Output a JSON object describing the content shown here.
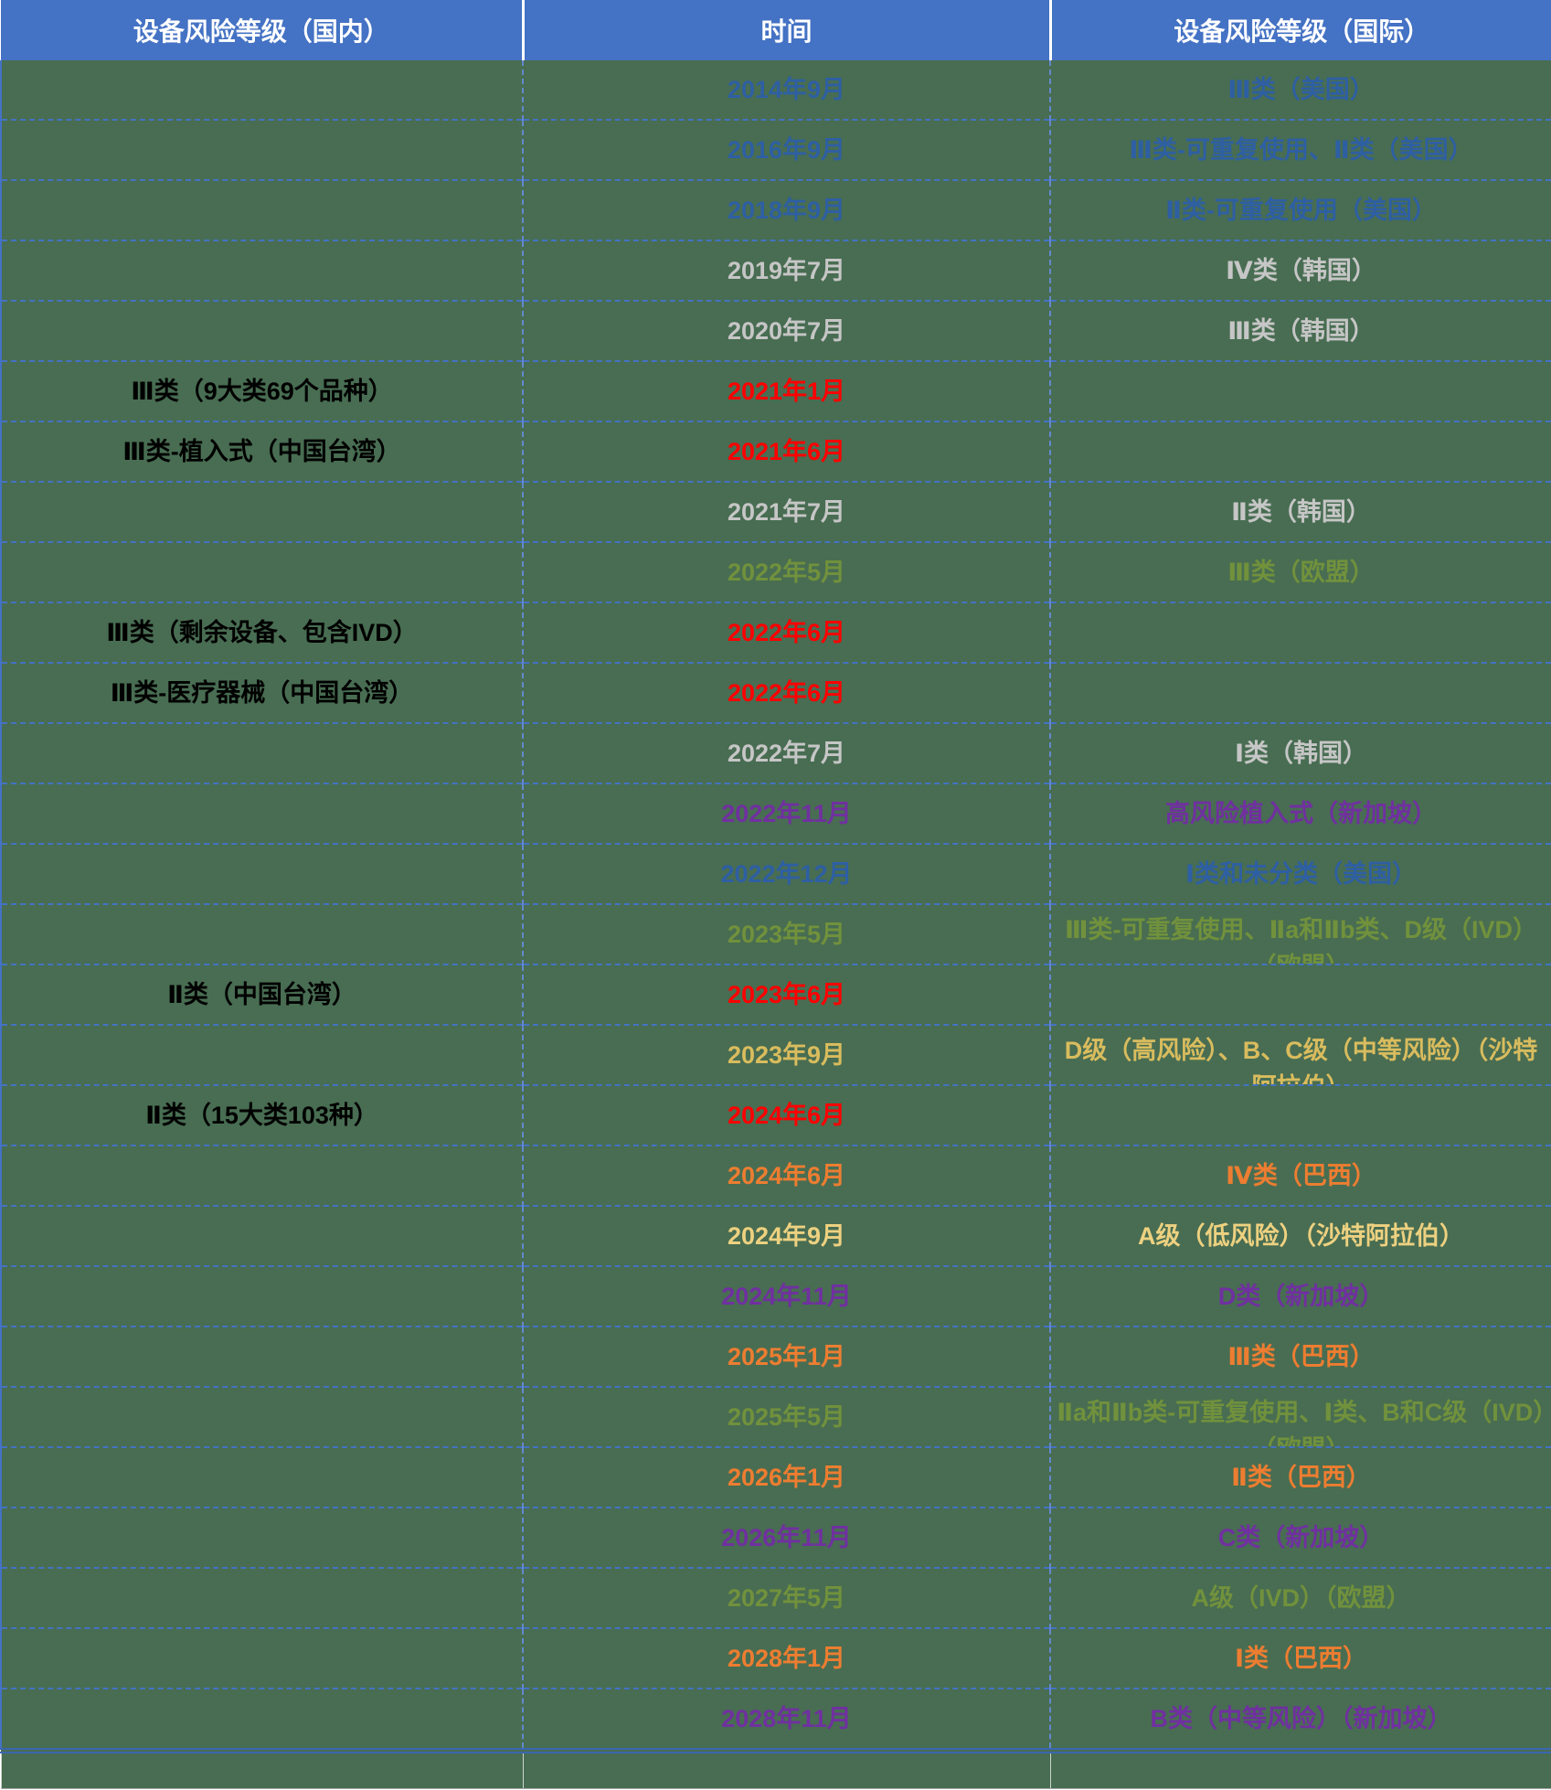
{
  "colors": {
    "header_bg": "#4472C4",
    "header_text": "#FFFFFF",
    "body_bg": "#486D52",
    "us": "#2E5FA3",
    "kr": "#C6C6C6",
    "cn_year": "#FF0000",
    "cn_text": "#000000",
    "eu": "#71913C",
    "sg": "#7030A0",
    "sa": "#D9BC5E",
    "sa_light": "#EDD180",
    "br": "#ED7D31",
    "none": "#486D52"
  },
  "table": {
    "columns": [
      {
        "label": "设备风险等级（国内）"
      },
      {
        "label": "时间"
      },
      {
        "label": "设备风险等级（国际）"
      }
    ],
    "rows": [
      {
        "domestic": "",
        "time": "2014年9月",
        "intl": "Ⅲ类（美国）",
        "time_color": "us",
        "intl_color": "us",
        "domestic_color": "cn_text",
        "wrap": false
      },
      {
        "domestic": "",
        "time": "2016年9月",
        "intl": "Ⅲ类-可重复使用、Ⅱ类（美国）",
        "time_color": "us",
        "intl_color": "us",
        "domestic_color": "cn_text",
        "wrap": false
      },
      {
        "domestic": "",
        "time": "2018年9月",
        "intl": "Ⅱ类-可重复使用（美国）",
        "time_color": "us",
        "intl_color": "us",
        "domestic_color": "cn_text",
        "wrap": false
      },
      {
        "domestic": "",
        "time": "2019年7月",
        "intl": "Ⅳ类（韩国）",
        "time_color": "kr",
        "intl_color": "kr",
        "domestic_color": "cn_text",
        "wrap": false
      },
      {
        "domestic": "",
        "time": "2020年7月",
        "intl": "Ⅲ类（韩国）",
        "time_color": "kr",
        "intl_color": "kr",
        "domestic_color": "cn_text",
        "wrap": false
      },
      {
        "domestic": "Ⅲ类（9大类69个品种）",
        "time": "2021年1月",
        "intl": "",
        "time_color": "cn_year",
        "intl_color": "none",
        "domestic_color": "cn_text",
        "wrap": false
      },
      {
        "domestic": "Ⅲ类-植入式（中国台湾）",
        "time": "2021年6月",
        "intl": "",
        "time_color": "cn_year",
        "intl_color": "none",
        "domestic_color": "cn_text",
        "wrap": false
      },
      {
        "domestic": "",
        "time": "2021年7月",
        "intl": "Ⅱ类（韩国）",
        "time_color": "kr",
        "intl_color": "kr",
        "domestic_color": "cn_text",
        "wrap": false
      },
      {
        "domestic": "",
        "time": "2022年5月",
        "intl": "Ⅲ类（欧盟）",
        "time_color": "eu",
        "intl_color": "eu",
        "domestic_color": "cn_text",
        "wrap": false
      },
      {
        "domestic": "Ⅲ类（剩余设备、包含IVD）",
        "time": "2022年6月",
        "intl": "",
        "time_color": "cn_year",
        "intl_color": "none",
        "domestic_color": "cn_text",
        "wrap": false
      },
      {
        "domestic": "Ⅲ类-医疗器械（中国台湾）",
        "time": "2022年6月",
        "intl": "",
        "time_color": "cn_year",
        "intl_color": "none",
        "domestic_color": "cn_text",
        "wrap": false
      },
      {
        "domestic": "",
        "time": "2022年7月",
        "intl": "Ⅰ类（韩国）",
        "time_color": "kr",
        "intl_color": "kr",
        "domestic_color": "cn_text",
        "wrap": false
      },
      {
        "domestic": "",
        "time": "2022年11月",
        "intl": "高风险植入式（新加坡）",
        "time_color": "sg",
        "intl_color": "sg",
        "domestic_color": "cn_text",
        "wrap": false
      },
      {
        "domestic": "",
        "time": "2022年12月",
        "intl": "Ⅰ类和未分类（美国）",
        "time_color": "us",
        "intl_color": "us",
        "domestic_color": "cn_text",
        "wrap": false
      },
      {
        "domestic": "",
        "time": "2023年5月",
        "intl": "Ⅲ类-可重复使用、Ⅱa和Ⅱb类、D级（IVD）（欧盟）",
        "time_color": "eu",
        "intl_color": "eu",
        "domestic_color": "cn_text",
        "wrap": true
      },
      {
        "domestic": "Ⅱ类（中国台湾）",
        "time": "2023年6月",
        "intl": "",
        "time_color": "cn_year",
        "intl_color": "none",
        "domestic_color": "cn_text",
        "wrap": false
      },
      {
        "domestic": "",
        "time": "2023年9月",
        "intl": "D级（高风险）、B、C级（中等风险）（沙特阿拉伯）",
        "time_color": "sa",
        "intl_color": "sa",
        "domestic_color": "cn_text",
        "wrap": true
      },
      {
        "domestic": "Ⅱ类（15大类103种）",
        "time": "2024年6月",
        "intl": "",
        "time_color": "cn_year",
        "intl_color": "none",
        "domestic_color": "cn_text",
        "wrap": false
      },
      {
        "domestic": "",
        "time": "2024年6月",
        "intl": "Ⅳ类（巴西）",
        "time_color": "br",
        "intl_color": "br",
        "domestic_color": "cn_text",
        "wrap": false
      },
      {
        "domestic": "",
        "time": "2024年9月",
        "intl": "A级（低风险）（沙特阿拉伯）",
        "time_color": "sa_light",
        "intl_color": "sa_light",
        "domestic_color": "cn_text",
        "wrap": false
      },
      {
        "domestic": "",
        "time": "2024年11月",
        "intl": "D类（新加坡）",
        "time_color": "sg",
        "intl_color": "sg",
        "domestic_color": "cn_text",
        "wrap": false
      },
      {
        "domestic": "",
        "time": "2025年1月",
        "intl": "Ⅲ类（巴西）",
        "time_color": "br",
        "intl_color": "br",
        "domestic_color": "cn_text",
        "wrap": false
      },
      {
        "domestic": "",
        "time": "2025年5月",
        "intl": "Ⅱa和Ⅱb类-可重复使用、Ⅰ类、B和C级（IVD）（欧盟）",
        "time_color": "eu",
        "intl_color": "eu",
        "domestic_color": "cn_text",
        "wrap": true
      },
      {
        "domestic": "",
        "time": "2026年1月",
        "intl": "Ⅱ类（巴西）",
        "time_color": "br",
        "intl_color": "br",
        "domestic_color": "cn_text",
        "wrap": false
      },
      {
        "domestic": "",
        "time": "2026年11月",
        "intl": "C类（新加坡）",
        "time_color": "sg",
        "intl_color": "sg",
        "domestic_color": "cn_text",
        "wrap": false
      },
      {
        "domestic": "",
        "time": "2027年5月",
        "intl": "A级（IVD）（欧盟）",
        "time_color": "eu",
        "intl_color": "eu",
        "domestic_color": "cn_text",
        "wrap": false
      },
      {
        "domestic": "",
        "time": "2028年1月",
        "intl": "Ⅰ类（巴西）",
        "time_color": "br",
        "intl_color": "br",
        "domestic_color": "cn_text",
        "wrap": false
      },
      {
        "domestic": "",
        "time": "2028年11月",
        "intl": "B类（中等风险）（新加坡）",
        "time_color": "sg",
        "intl_color": "sg",
        "domestic_color": "cn_text",
        "wrap": false
      }
    ]
  }
}
